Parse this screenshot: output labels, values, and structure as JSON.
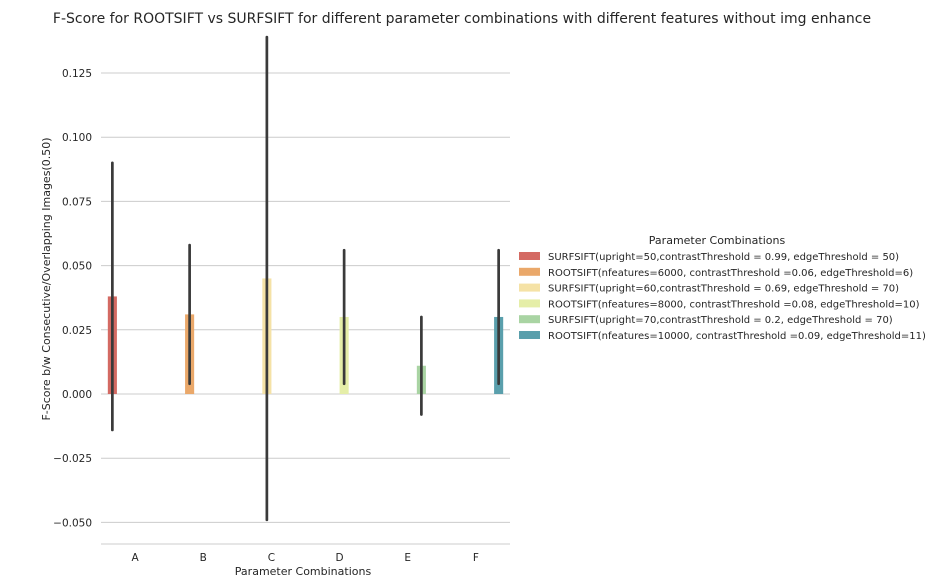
{
  "chart_data": {
    "type": "bar",
    "title": "F-Score for ROOTSIFT vs SURFSIFT for different parameter combinations with different features without img enhance",
    "xlabel": "Parameter Combinations",
    "ylabel": "F-Score b/w Consecutive/Overlapping Images(0.50)",
    "ylim": [
      -0.058,
      0.14
    ],
    "yticks": [
      -0.05,
      -0.025,
      0.0,
      0.025,
      0.05,
      0.075,
      0.1,
      0.125
    ],
    "ytick_labels": [
      "−0.050",
      "−0.025",
      "0.000",
      "0.025",
      "0.050",
      "0.075",
      "0.100",
      "0.125"
    ],
    "categories": [
      "A",
      "B",
      "C",
      "D",
      "E",
      "F"
    ],
    "grid": "horizontal",
    "legend": {
      "title": "Parameter Combinations",
      "placement": "right"
    },
    "series": [
      {
        "name": "SURFSIFT(upright=50,contrastThreshold = 0.99, edgeThreshold = 50)",
        "color": "#d46a63",
        "category": "A",
        "value": 0.038,
        "ci": [
          -0.014,
          0.09
        ]
      },
      {
        "name": "ROOTSIFT(nfeatures=6000, contrastThreshold =0.06, edgeThreshold=6)",
        "color": "#eaa86a",
        "category": "B",
        "value": 0.031,
        "ci": [
          0.004,
          0.058
        ]
      },
      {
        "name": "SURFSIFT(upright=60,contrastThreshold = 0.69, edgeThreshold = 70)",
        "color": "#f5e2a6",
        "category": "C",
        "value": 0.045,
        "ci": [
          -0.049,
          0.139
        ]
      },
      {
        "name": "ROOTSIFT(nfeatures=8000, contrastThreshold =0.08, edgeThreshold=10)",
        "color": "#e5eea8",
        "category": "D",
        "value": 0.03,
        "ci": [
          0.004,
          0.056
        ]
      },
      {
        "name": "SURFSIFT(upright=70,contrastThreshold = 0.2, edgeThreshold = 70)",
        "color": "#a9d4a3",
        "category": "E",
        "value": 0.011,
        "ci": [
          -0.008,
          0.03
        ]
      },
      {
        "name": "ROOTSIFT(nfeatures=10000, contrastThreshold =0.09, edgeThreshold=11)",
        "color": "#5a9fac",
        "category": "F",
        "value": 0.03,
        "ci": [
          0.004,
          0.056
        ]
      }
    ]
  }
}
